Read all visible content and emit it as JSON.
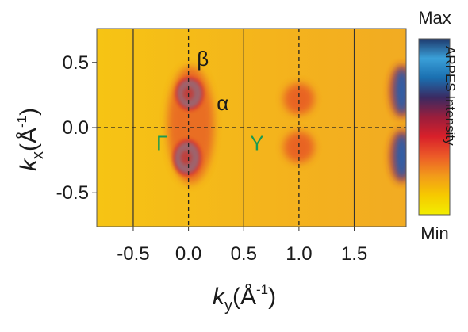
{
  "chart_data": {
    "type": "heatmap",
    "title": "",
    "xlabel": {
      "main": "k",
      "sub": "y",
      "unit_pre": "(Å",
      "unit_sup": "-1",
      "unit_post": ")"
    },
    "ylabel": {
      "main": "k",
      "sub": "x",
      "unit_pre": "(Å",
      "unit_sup": "-1",
      "unit_post": ")"
    },
    "xlim": [
      -0.83,
      1.97
    ],
    "ylim": [
      -0.76,
      0.76
    ],
    "xticks": [
      -0.5,
      0.0,
      0.5,
      1.0,
      1.5
    ],
    "xtick_labels": [
      "-0.5",
      "0.0",
      "0.5",
      "1.0",
      "1.5"
    ],
    "yticks": [
      0.5,
      0.0,
      -0.5
    ],
    "ytick_labels": [
      "0.5",
      "0.0",
      "-0.5"
    ],
    "solid_vertical_lines_x": [
      -0.5,
      0.5,
      1.5
    ],
    "dashed_vertical_lines_x": [
      0.0,
      1.0
    ],
    "dashed_horizontal_lines_y": [
      0.0
    ],
    "point_labels": [
      {
        "text": "β",
        "x": 0.13,
        "y": 0.53,
        "color": "#1a1a1a"
      },
      {
        "text": "α",
        "x": 0.31,
        "y": 0.19,
        "color": "#1a1a1a"
      },
      {
        "text": "Γ",
        "x": -0.24,
        "y": -0.12,
        "color": "#1a9a50"
      },
      {
        "text": "Y",
        "x": 0.62,
        "y": -0.12,
        "color": "#1a9a50"
      }
    ],
    "intensity_features": [
      {
        "feature": "hole pocket",
        "x": 0.01,
        "y": 0.26,
        "sx": 0.11,
        "sy": 0.11,
        "level": 1.0
      },
      {
        "feature": "hole pocket",
        "x": -0.01,
        "y": -0.23,
        "sx": 0.11,
        "sy": 0.12,
        "level": 1.0
      },
      {
        "feature": "outer pocket",
        "x": 0.02,
        "y": 0.02,
        "sx": 0.21,
        "sy": 0.45,
        "level": 0.62
      },
      {
        "feature": "band",
        "x": 1.0,
        "y": 0.22,
        "sx": 0.14,
        "sy": 0.12,
        "level": 0.5
      },
      {
        "feature": "band",
        "x": 1.0,
        "y": -0.15,
        "sx": 0.14,
        "sy": 0.12,
        "level": 0.5
      },
      {
        "feature": "band",
        "x": 1.93,
        "y": 0.28,
        "sx": 0.07,
        "sy": 0.18,
        "level": 0.95
      },
      {
        "feature": "band",
        "x": 1.93,
        "y": -0.22,
        "sx": 0.07,
        "sy": 0.18,
        "level": 0.95
      }
    ],
    "colorbar": {
      "label": "ARPES Intensity",
      "max_label": "Max",
      "min_label": "Min",
      "colors": [
        "#f2ee00",
        "#f6c900",
        "#f29a1a",
        "#ec5a28",
        "#d8202a",
        "#9a1e3c",
        "#3a2a62",
        "#1a6fb0",
        "#3aa0d8",
        "#1e3a6e"
      ]
    },
    "colors": {
      "background": "#f5c412",
      "hole": "#2fa0dc",
      "hole_rim": "#d8202a",
      "labels": "#1a1a1a",
      "symmetry_points": "#1a9a50"
    }
  }
}
